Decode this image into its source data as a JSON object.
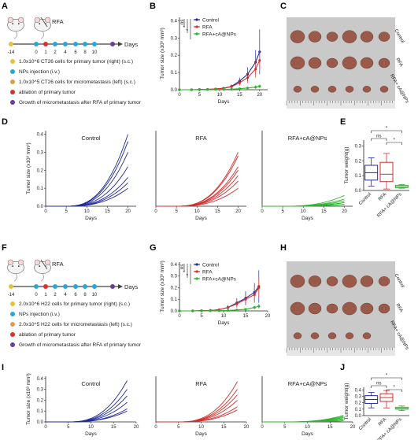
{
  "panels": [
    "A",
    "B",
    "C",
    "D",
    "E",
    "F",
    "G",
    "H",
    "I",
    "J"
  ],
  "colors": {
    "control": "#1f2a9c",
    "rfa": "#d12f2f",
    "cA": "#2ab52a"
  },
  "timelines": [
    {
      "top_label": "RFA",
      "days_label": "Days",
      "ticks": [
        "-14",
        "0",
        "1",
        "2",
        "4",
        "6",
        "8",
        "10"
      ],
      "legend": [
        "1.0x10^6 CT26 cells for primary tumor (right) (s.c.)",
        "NPs injection (i.v.)",
        "1.0x10^5 CT26 cells for micrometastasis (left) (s.c.)",
        "ablation of primary tumor",
        "Growth of micrometastasis after RFA of primary tumor"
      ],
      "legend_colors": [
        "#e8c13a",
        "#2aa7d9",
        "#d9a24a",
        "#d6312f",
        "#6a3c9c"
      ]
    },
    {
      "top_label": "RFA",
      "days_label": "Days",
      "ticks": [
        "-14",
        "0",
        "1",
        "2",
        "4",
        "6",
        "8",
        "10"
      ],
      "legend": [
        "2.0x10^6 H22 cells for primary tumor (right) (s.c.)",
        "NPs injection (i.v.)",
        "2.0x10^5 H22 cells for micrometastasis (left) (s.c.)",
        "ablation of primary tumor",
        "Growth of micrometastasis after RFA of primary tumor"
      ],
      "legend_colors": [
        "#e8c13a",
        "#2aa7d9",
        "#d9a24a",
        "#d6312f",
        "#6a3c9c"
      ]
    }
  ],
  "photos": [
    {
      "labels": [
        "Control",
        "RFA",
        "RFA+ cA@NPs"
      ],
      "counts": [
        6,
        6,
        6
      ]
    },
    {
      "labels": [
        "Control",
        "RFA",
        "RFA+ cA@NPs"
      ],
      "counts": [
        6,
        6,
        5
      ]
    }
  ],
  "chart_data": [
    {
      "id": "B",
      "type": "line",
      "xlabel": "Days",
      "ylabel": "Tumor size (x10³ mm³)",
      "xticks": [
        0,
        5,
        10,
        15,
        20
      ],
      "yticks": [
        0,
        0.1,
        0.2,
        0.3,
        0.4
      ],
      "xlim": [
        0,
        22
      ],
      "ylim": [
        0,
        0.42
      ],
      "sig": [
        "ns",
        "*",
        "*"
      ],
      "series": [
        {
          "name": "Control",
          "color": "#1f2a9c",
          "x": [
            0,
            3,
            5,
            7,
            9,
            11,
            13,
            15,
            17,
            19,
            20
          ],
          "y": [
            0,
            0,
            0.001,
            0.002,
            0.004,
            0.008,
            0.02,
            0.05,
            0.09,
            0.16,
            0.22
          ],
          "err": [
            0,
            0,
            0,
            0.001,
            0.002,
            0.005,
            0.01,
            0.02,
            0.04,
            0.07,
            0.13
          ]
        },
        {
          "name": "RFA",
          "color": "#d12f2f",
          "x": [
            0,
            3,
            5,
            7,
            9,
            11,
            13,
            15,
            17,
            19,
            20
          ],
          "y": [
            0,
            0,
            0.001,
            0.002,
            0.004,
            0.008,
            0.018,
            0.04,
            0.07,
            0.12,
            0.17
          ],
          "err": [
            0,
            0,
            0,
            0.001,
            0.002,
            0.004,
            0.008,
            0.015,
            0.03,
            0.05,
            0.06
          ]
        },
        {
          "name": "RFA+cA@NPs",
          "color": "#2ab52a",
          "x": [
            0,
            3,
            5,
            7,
            9,
            11,
            13,
            15,
            17,
            19,
            20
          ],
          "y": [
            0,
            0,
            0,
            0.001,
            0.001,
            0.002,
            0.003,
            0.006,
            0.01,
            0.015,
            0.02
          ],
          "err": [
            0,
            0,
            0,
            0,
            0.001,
            0.001,
            0.002,
            0.004,
            0.006,
            0.01,
            0.01
          ]
        }
      ]
    },
    {
      "id": "D",
      "type": "line",
      "ylabel": "Tumor size (x10³ mm³)",
      "xlabel": "Days",
      "xticks": [
        0,
        5,
        10,
        15,
        20
      ],
      "yticks": [
        0,
        0.1,
        0.2,
        0.3,
        0.4
      ],
      "xlim": [
        0,
        22
      ],
      "ylim": [
        0,
        0.42
      ],
      "groups": [
        {
          "title": "Control",
          "color": "#1f2a9c",
          "finals": [
            0.4,
            0.36,
            0.3,
            0.22,
            0.16,
            0.13,
            0.1
          ]
        },
        {
          "title": "RFA",
          "color": "#d12f2f",
          "finals": [
            0.3,
            0.28,
            0.22,
            0.2,
            0.17,
            0.14,
            0.1
          ]
        },
        {
          "title": "RFA+cA@NPs",
          "color": "#2ab52a",
          "finals": [
            0.06,
            0.04,
            0.03,
            0.02,
            0.02,
            0.01,
            0.01
          ]
        }
      ]
    },
    {
      "id": "E",
      "type": "box",
      "ylabel": "Tumor weight(g)",
      "yticks": [
        0,
        0.1,
        0.2,
        0.3
      ],
      "ylim": [
        0,
        0.34
      ],
      "categories": [
        "Control",
        "RFA",
        "RFA+ cA@NPs"
      ],
      "colors": [
        "#1f2a9c",
        "#d12f2f",
        "#2ab52a"
      ],
      "boxes": [
        {
          "min": 0.03,
          "q1": 0.07,
          "median": 0.12,
          "q3": 0.17,
          "max": 0.22
        },
        {
          "min": 0.01,
          "q1": 0.06,
          "median": 0.11,
          "q3": 0.19,
          "max": 0.25
        },
        {
          "min": 0.015,
          "q1": 0.02,
          "median": 0.025,
          "q3": 0.035,
          "max": 0.04
        }
      ],
      "sig": [
        {
          "from": 0,
          "to": 1,
          "label": "ns"
        },
        {
          "from": 0,
          "to": 2,
          "label": "*"
        },
        {
          "from": 1,
          "to": 2,
          "label": "*"
        }
      ]
    },
    {
      "id": "G",
      "type": "line",
      "xlabel": "Days",
      "ylabel": "Tumor size (x10³ mm³)",
      "xticks": [
        0,
        5,
        10,
        15,
        20
      ],
      "yticks": [
        0,
        0.1,
        0.2,
        0.3,
        0.4
      ],
      "xlim": [
        0,
        20
      ],
      "ylim": [
        0,
        0.42
      ],
      "sig": [
        "ns",
        "*",
        "*"
      ],
      "series": [
        {
          "name": "Control",
          "color": "#1f2a9c",
          "x": [
            0,
            3,
            5,
            7,
            9,
            11,
            13,
            15,
            17,
            18
          ],
          "y": [
            0,
            0,
            0.002,
            0.004,
            0.01,
            0.03,
            0.07,
            0.11,
            0.16,
            0.21
          ],
          "err": [
            0,
            0,
            0.001,
            0.002,
            0.005,
            0.02,
            0.04,
            0.06,
            0.08,
            0.14
          ]
        },
        {
          "name": "RFA",
          "color": "#d12f2f",
          "x": [
            0,
            3,
            5,
            7,
            9,
            11,
            13,
            15,
            17,
            18
          ],
          "y": [
            0,
            0,
            0.002,
            0.004,
            0.01,
            0.03,
            0.06,
            0.1,
            0.14,
            0.2
          ],
          "err": [
            0,
            0,
            0.001,
            0.002,
            0.005,
            0.015,
            0.03,
            0.05,
            0.07,
            0.08
          ]
        },
        {
          "name": "RFA+cA@NPs",
          "color": "#2ab52a",
          "x": [
            0,
            3,
            5,
            7,
            9,
            11,
            13,
            15,
            17,
            18
          ],
          "y": [
            0,
            0,
            0,
            0.001,
            0.002,
            0.004,
            0.008,
            0.014,
            0.03,
            0.04
          ],
          "err": [
            0,
            0,
            0,
            0,
            0.001,
            0.002,
            0.004,
            0.008,
            0.015,
            0.02
          ]
        }
      ]
    },
    {
      "id": "I",
      "type": "line",
      "ylabel": "Tumor size (x10³ mm³)",
      "xlabel": "Days",
      "xticks": [
        0,
        5,
        10,
        15,
        20
      ],
      "yticks": [
        0,
        0.1,
        0.2,
        0.3,
        0.4
      ],
      "xlim": [
        0,
        20
      ],
      "ylim": [
        0,
        0.42
      ],
      "groups": [
        {
          "title": "Control",
          "color": "#1f2a9c",
          "finals": [
            0.38,
            0.3,
            0.24,
            0.18,
            0.12,
            0.1
          ]
        },
        {
          "title": "RFA",
          "color": "#d12f2f",
          "finals": [
            0.37,
            0.3,
            0.25,
            0.2,
            0.14,
            0.11
          ]
        },
        {
          "title": "RFA+cA@NPs",
          "color": "#2ab52a",
          "finals": [
            0.06,
            0.05,
            0.04,
            0.03,
            0.02,
            0.01
          ]
        }
      ]
    },
    {
      "id": "J",
      "type": "box",
      "ylabel": "Tumor weight(g)",
      "yticks": [
        0,
        0.1,
        0.2,
        0.3,
        0.4
      ],
      "ylim": [
        0,
        0.44
      ],
      "categories": [
        "Control",
        "RFA",
        "RFA+ cA@NPs"
      ],
      "colors": [
        "#1f2a9c",
        "#d12f2f",
        "#2ab52a"
      ],
      "boxes": [
        {
          "min": 0.12,
          "q1": 0.19,
          "median": 0.25,
          "q3": 0.31,
          "max": 0.36
        },
        {
          "min": 0.12,
          "q1": 0.22,
          "median": 0.28,
          "q3": 0.34,
          "max": 0.39
        },
        {
          "min": 0.08,
          "q1": 0.1,
          "median": 0.11,
          "q3": 0.13,
          "max": 0.15
        }
      ],
      "sig": [
        {
          "from": 0,
          "to": 1,
          "label": "ns"
        },
        {
          "from": 0,
          "to": 2,
          "label": "*"
        },
        {
          "from": 1,
          "to": 2,
          "label": "*"
        }
      ]
    }
  ]
}
